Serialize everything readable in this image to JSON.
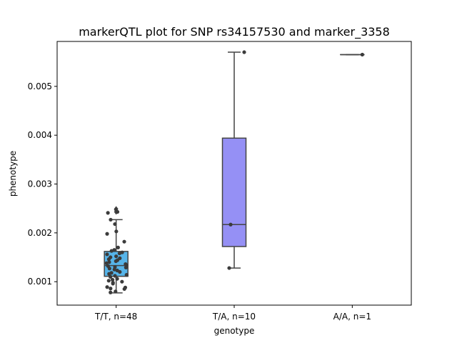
{
  "chart_data": {
    "type": "box",
    "title": "markerQTL plot for SNP rs34157530 and marker_3358",
    "xlabel": "genotype",
    "ylabel": "phenotype",
    "ylim": [
      0.00052,
      0.00592
    ],
    "yticks": [
      0.001,
      0.002,
      0.003,
      0.004,
      0.005
    ],
    "ytick_labels": [
      "0.001",
      "0.002",
      "0.003",
      "0.004",
      "0.005"
    ],
    "categories": [
      "T/T, n=48",
      "T/A, n=10",
      "A/A, n=1"
    ],
    "colors": [
      "#56B4E9",
      "#9590F5",
      "#9590F5"
    ],
    "boxes": [
      {
        "category": "T/T, n=48",
        "whisker_low": 0.00077,
        "q1": 0.00111,
        "median": 0.00133,
        "q3": 0.00162,
        "whisker_high": 0.00227,
        "outliers": [
          0.00243,
          0.00249
        ]
      },
      {
        "category": "T/A, n=10",
        "whisker_low": 0.00128,
        "q1": 0.00172,
        "median": 0.00217,
        "q3": 0.00394,
        "whisker_high": 0.0057,
        "outliers": []
      },
      {
        "category": "A/A, n=1",
        "whisker_low": 0.00565,
        "q1": 0.00565,
        "median": 0.00565,
        "q3": 0.00565,
        "whisker_high": 0.00565,
        "outliers": []
      }
    ],
    "points": [
      {
        "category": "T/T, n=48",
        "values": [
          0.00248,
          0.00243,
          0.00241,
          0.00227,
          0.00218,
          0.00203,
          0.00198,
          0.00182,
          0.0017,
          0.00165,
          0.00163,
          0.0016,
          0.00158,
          0.00156,
          0.00152,
          0.0015,
          0.00148,
          0.00146,
          0.00144,
          0.00142,
          0.0014,
          0.00138,
          0.00136,
          0.00134,
          0.00132,
          0.0013,
          0.00129,
          0.00127,
          0.00125,
          0.00123,
          0.0012,
          0.00118,
          0.00116,
          0.00114,
          0.00112,
          0.0011,
          0.00106,
          0.00104,
          0.00102,
          0.001,
          0.00098,
          0.00096,
          0.00089,
          0.00088,
          0.00086,
          0.00085,
          0.0008,
          0.00078
        ]
      },
      {
        "category": "T/A, n=10",
        "values": [
          0.0057,
          0.00217,
          0.00128
        ]
      },
      {
        "category": "A/A, n=1",
        "values": [
          0.00565
        ]
      }
    ]
  }
}
